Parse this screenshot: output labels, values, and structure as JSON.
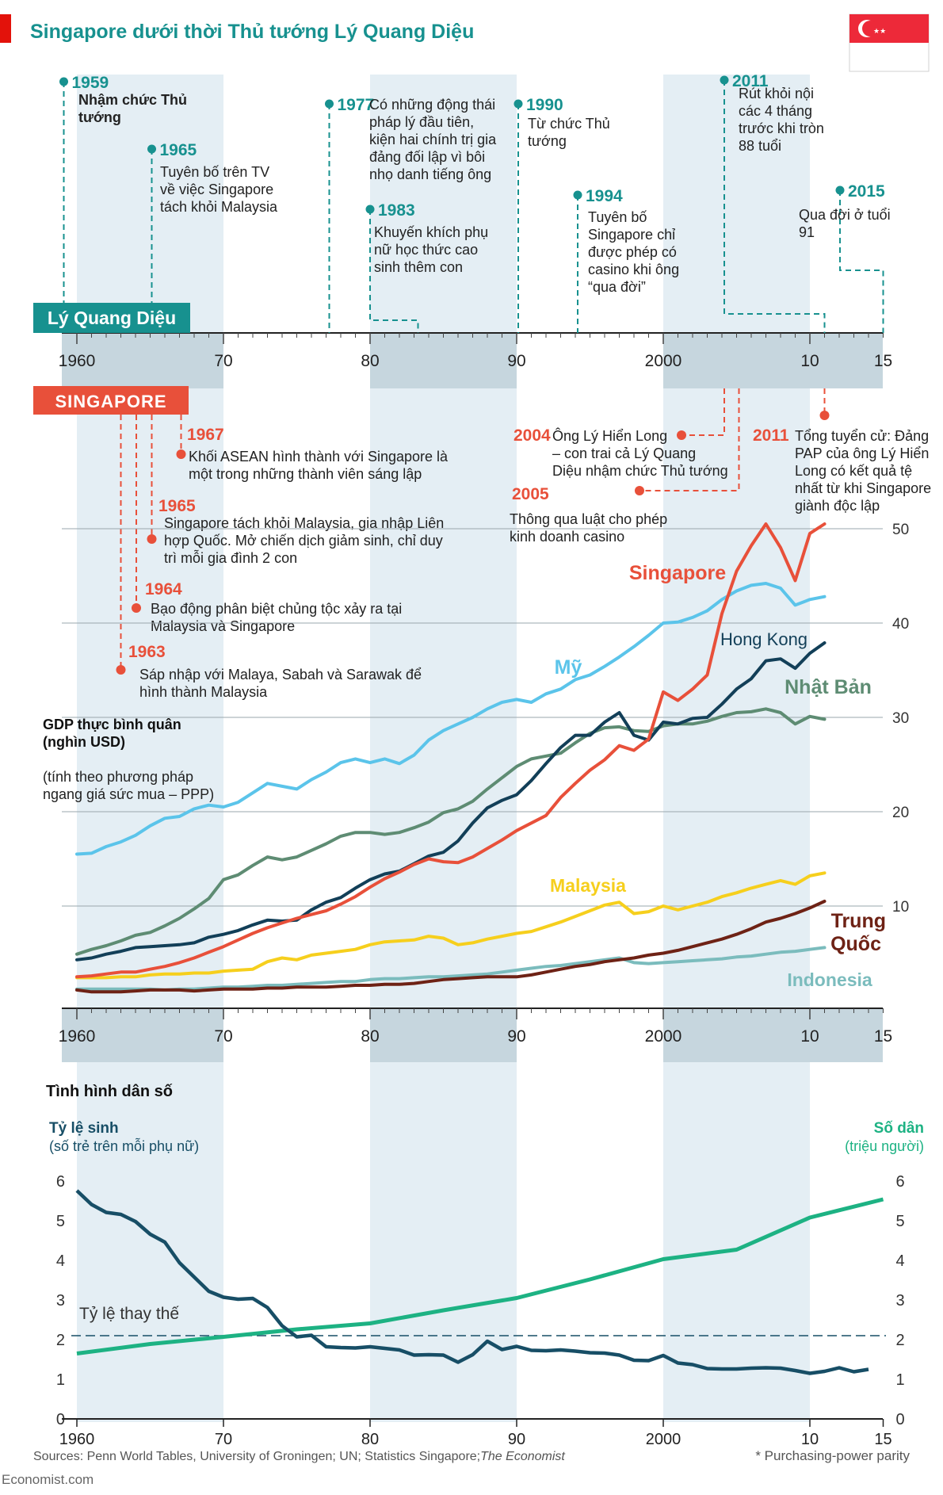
{
  "title": "Singapore dưới thời Thủ tướng Lý Quang Diệu",
  "colors": {
    "red": "#e8503a",
    "teal": "#17918f",
    "usa": "#5bc4ea",
    "hongkong": "#123f58",
    "japan": "#5e8c73",
    "malaysia": "#f6cf1d",
    "china": "#6e2215",
    "indonesia": "#7bbcbd",
    "birth": "#174e66",
    "pop": "#1db283",
    "band": "#e4eef4",
    "axisband": "#c6d6de"
  },
  "axis_years": {
    "labels": [
      "1960",
      "70",
      "80",
      "90",
      "2000",
      "10",
      "15"
    ],
    "values": [
      1960,
      1970,
      1980,
      1990,
      2000,
      2010,
      2015
    ]
  },
  "lky": {
    "badge": "Lý Quang Diệu",
    "events": [
      {
        "year": "1959",
        "lines": [
          "Nhậm chức Thủ",
          "tướng"
        ]
      },
      {
        "year": "1965",
        "lines": [
          "Tuyên bố trên TV",
          "về việc Singapore",
          "tách khỏi Malaysia"
        ]
      },
      {
        "year": "1977",
        "lines": [
          "Có những động thái",
          "pháp lý đầu tiên,",
          "kiện hai chính trị gia",
          "đảng đối lập vì bôi",
          "nhọ danh tiếng ông"
        ]
      },
      {
        "year": "1983",
        "lines": [
          "Khuyến khích phụ",
          "nữ học thức cao",
          "sinh thêm con"
        ]
      },
      {
        "year": "1990",
        "lines": [
          "Từ chức Thủ",
          "tướng"
        ]
      },
      {
        "year": "1994",
        "lines": [
          "Tuyên bố",
          "Singapore chỉ",
          "được phép có",
          "casino khi ông",
          "“qua đời”"
        ]
      },
      {
        "year": "2011",
        "lines": [
          "Rút khỏi nội",
          "các 4 tháng",
          "trước khi tròn",
          "88 tuổi"
        ]
      },
      {
        "year": "2015",
        "lines": [
          "Qua đời ở tuổi",
          "91"
        ]
      }
    ]
  },
  "singapore": {
    "badge": "SINGAPORE",
    "events": [
      {
        "year": "1967",
        "lines": [
          "Khối ASEAN hình thành với Singapore là",
          "một trong những thành viên sáng lập"
        ]
      },
      {
        "year": "1965",
        "lines": [
          "Singapore tách khỏi Malaysia, gia nhập Liên",
          "hợp Quốc. Mở chiến dịch giảm sinh, chỉ duy",
          "trì mỗi gia đình 2 con"
        ]
      },
      {
        "year": "1964",
        "lines": [
          "Bạo động phân biệt chủng tộc xảy ra tại",
          "Malaysia và Singapore"
        ]
      },
      {
        "year": "1963",
        "lines": [
          "Sáp nhập với Malaya, Sabah và Sarawak để",
          "hình thành Malaysia"
        ]
      },
      {
        "year": "2004",
        "lines": [
          "Ông Lý Hiển Long",
          "– con trai cả Lý Quang",
          "Diệu nhậm chức Thủ tướng"
        ]
      },
      {
        "year": "2005",
        "lines": [
          "Thông qua luật cho phép",
          "kinh doanh casino"
        ]
      },
      {
        "year": "2011",
        "lines": [
          "Tổng tuyển cử: Đảng",
          "PAP của ông Lý Hiển",
          "Long có kết quả tệ",
          "nhất từ khi Singapore",
          "giành độc lập"
        ]
      }
    ]
  },
  "gdp_title": [
    "GDP thực bình quân",
    "(nghìn USD)"
  ],
  "gdp_note": [
    "(tính theo phương pháp",
    "ngang giá sức mua – PPP)"
  ],
  "pop_title": "Tình hình dân số",
  "birth_axis": [
    "Tỷ lệ sinh",
    "(số trẻ trên mỗi phụ nữ)"
  ],
  "pop_axis": [
    "Số dân",
    "(triệu người)"
  ],
  "replacement_label": "Tỷ lệ thay thế",
  "sources": "Sources: Penn World Tables, University of Groningen; UN; Statistics Singapore;",
  "sources_italic": "The Economist",
  "footnote": "* Purchasing-power parity",
  "brand": "Economist.com",
  "chart_data": [
    {
      "type": "line",
      "title": "GDP thực bình quân (nghìn USD)",
      "xlabel": "",
      "ylabel": "GDP thực bình quân (nghìn USD)",
      "ylim": [
        0,
        55
      ],
      "y_ticks": [
        10,
        20,
        30,
        40,
        50
      ],
      "xlim": [
        1960,
        2015
      ],
      "x": [
        1960,
        1961,
        1962,
        1963,
        1964,
        1965,
        1966,
        1967,
        1968,
        1969,
        1970,
        1971,
        1972,
        1973,
        1974,
        1975,
        1976,
        1977,
        1978,
        1979,
        1980,
        1981,
        1982,
        1983,
        1984,
        1985,
        1986,
        1987,
        1988,
        1989,
        1990,
        1991,
        1992,
        1993,
        1994,
        1995,
        1996,
        1997,
        1998,
        1999,
        2000,
        2001,
        2002,
        2003,
        2004,
        2005,
        2006,
        2007,
        2008,
        2009,
        2010,
        2011
      ],
      "series": [
        {
          "name": "Mỹ",
          "values": [
            15.5,
            15.6,
            16.3,
            16.8,
            17.5,
            18.5,
            19.3,
            19.5,
            20.3,
            20.7,
            20.5,
            21.0,
            22.0,
            23.0,
            22.7,
            22.4,
            23.4,
            24.2,
            25.2,
            25.6,
            25.2,
            25.6,
            25.1,
            26.0,
            27.6,
            28.6,
            29.3,
            30.0,
            30.9,
            31.6,
            31.9,
            31.6,
            32.5,
            33.0,
            34.0,
            34.5,
            35.4,
            36.4,
            37.5,
            38.7,
            40.0,
            40.1,
            40.6,
            41.3,
            42.5,
            43.4,
            44.0,
            44.2,
            43.7,
            41.9,
            42.5,
            42.8
          ]
        },
        {
          "name": "Hong Kong",
          "values": [
            4.3,
            4.5,
            4.9,
            5.2,
            5.6,
            5.7,
            5.8,
            5.9,
            6.1,
            6.7,
            7.0,
            7.4,
            8.0,
            8.5,
            8.4,
            8.5,
            9.6,
            10.4,
            10.9,
            11.9,
            12.8,
            13.4,
            13.7,
            14.5,
            15.3,
            15.7,
            16.9,
            18.8,
            20.4,
            21.2,
            21.8,
            23.3,
            25.1,
            26.8,
            28.1,
            28.1,
            29.5,
            30.5,
            28.1,
            27.6,
            29.5,
            29.3,
            29.9,
            30.0,
            31.4,
            33.0,
            34.1,
            36.0,
            36.2,
            35.2,
            36.8,
            37.9
          ]
        },
        {
          "name": "Nhật Bản",
          "values": [
            4.9,
            5.4,
            5.8,
            6.3,
            6.9,
            7.2,
            7.9,
            8.7,
            9.7,
            10.8,
            12.8,
            13.3,
            14.3,
            15.2,
            14.9,
            15.2,
            15.9,
            16.6,
            17.4,
            17.8,
            17.8,
            17.6,
            17.8,
            18.3,
            18.9,
            19.9,
            20.3,
            21.1,
            22.4,
            23.6,
            24.8,
            25.6,
            25.9,
            26.2,
            27.3,
            28.3,
            28.9,
            29.0,
            28.6,
            28.5,
            29.1,
            29.3,
            29.3,
            29.6,
            30.1,
            30.5,
            30.6,
            30.9,
            30.5,
            29.3,
            30.1,
            29.8
          ]
        },
        {
          "name": "Singapore",
          "values": [
            2.5,
            2.6,
            2.8,
            3.0,
            3.0,
            3.3,
            3.6,
            4.0,
            4.5,
            5.1,
            5.7,
            6.4,
            7.1,
            7.7,
            8.2,
            8.7,
            9.1,
            9.5,
            10.2,
            11.0,
            12.0,
            12.9,
            13.6,
            14.4,
            15.0,
            14.7,
            14.6,
            15.2,
            16.1,
            17.0,
            18.0,
            18.8,
            19.6,
            21.5,
            23.0,
            24.4,
            25.5,
            27.0,
            26.5,
            27.7,
            32.7,
            31.8,
            33.0,
            34.5,
            41.0,
            45.5,
            48.2,
            50.5,
            48.0,
            44.5,
            49.5,
            50.5
          ]
        },
        {
          "name": "Malaysia",
          "values": [
            2.4,
            2.4,
            2.4,
            2.5,
            2.5,
            2.7,
            2.8,
            2.8,
            2.9,
            2.9,
            3.1,
            3.2,
            3.3,
            4.1,
            4.5,
            4.3,
            4.8,
            5.0,
            5.2,
            5.4,
            5.9,
            6.2,
            6.3,
            6.4,
            6.8,
            6.6,
            5.9,
            6.1,
            6.5,
            6.8,
            7.1,
            7.3,
            7.8,
            8.3,
            8.9,
            9.5,
            10.1,
            10.4,
            9.2,
            9.4,
            10.0,
            9.6,
            10.0,
            10.4,
            11.0,
            11.4,
            11.9,
            12.3,
            12.7,
            12.3,
            13.2,
            13.5
          ]
        },
        {
          "name": "Trung Quốc",
          "values": [
            1.1,
            0.9,
            0.9,
            0.9,
            1.0,
            1.1,
            1.1,
            1.1,
            1.0,
            1.1,
            1.2,
            1.2,
            1.2,
            1.3,
            1.3,
            1.4,
            1.4,
            1.4,
            1.5,
            1.6,
            1.6,
            1.7,
            1.7,
            1.8,
            2.0,
            2.2,
            2.3,
            2.4,
            2.5,
            2.5,
            2.5,
            2.7,
            3.0,
            3.3,
            3.6,
            3.8,
            4.1,
            4.3,
            4.5,
            4.8,
            5.0,
            5.3,
            5.7,
            6.1,
            6.5,
            7.0,
            7.6,
            8.3,
            8.7,
            9.2,
            9.8,
            10.5
          ]
        },
        {
          "name": "Indonesia",
          "values": [
            1.2,
            1.2,
            1.2,
            1.2,
            1.2,
            1.2,
            1.1,
            1.2,
            1.2,
            1.3,
            1.4,
            1.4,
            1.5,
            1.6,
            1.6,
            1.7,
            1.8,
            1.9,
            2.0,
            2.0,
            2.2,
            2.3,
            2.3,
            2.4,
            2.5,
            2.5,
            2.6,
            2.7,
            2.8,
            3.0,
            3.2,
            3.4,
            3.6,
            3.7,
            3.9,
            4.1,
            4.3,
            4.5,
            4.0,
            3.9,
            4.0,
            4.1,
            4.2,
            4.3,
            4.4,
            4.6,
            4.7,
            4.9,
            5.1,
            5.2,
            5.4,
            5.6
          ]
        }
      ]
    },
    {
      "type": "line",
      "title": "Tình hình dân số",
      "ylabel": "Tỷ lệ sinh (số trẻ trên mỗi phụ nữ)",
      "y2label": "Số dân (triệu người)",
      "ylim": [
        0,
        6
      ],
      "y_ticks": [
        0,
        1,
        2,
        3,
        4,
        5,
        6
      ],
      "xlim": [
        1960,
        2015
      ],
      "replacement_rate": 2.1,
      "series": [
        {
          "name": "Tỷ lệ sinh",
          "x": [
            1960,
            1961,
            1962,
            1963,
            1964,
            1965,
            1966,
            1967,
            1968,
            1969,
            1970,
            1971,
            1972,
            1973,
            1974,
            1975,
            1976,
            1977,
            1978,
            1979,
            1980,
            1981,
            1982,
            1983,
            1984,
            1985,
            1986,
            1987,
            1988,
            1989,
            1990,
            1991,
            1992,
            1993,
            1994,
            1995,
            1996,
            1997,
            1998,
            1999,
            2000,
            2001,
            2002,
            2003,
            2004,
            2005,
            2006,
            2007,
            2008,
            2009,
            2010,
            2011,
            2012,
            2013,
            2014
          ],
          "values": [
            5.76,
            5.41,
            5.21,
            5.16,
            4.98,
            4.66,
            4.46,
            3.94,
            3.58,
            3.22,
            3.07,
            3.02,
            3.04,
            2.81,
            2.35,
            2.07,
            2.11,
            1.82,
            1.8,
            1.79,
            1.82,
            1.78,
            1.74,
            1.61,
            1.62,
            1.61,
            1.43,
            1.62,
            1.96,
            1.75,
            1.83,
            1.73,
            1.72,
            1.74,
            1.71,
            1.67,
            1.66,
            1.61,
            1.48,
            1.47,
            1.6,
            1.41,
            1.37,
            1.27,
            1.26,
            1.26,
            1.28,
            1.29,
            1.28,
            1.22,
            1.15,
            1.2,
            1.29,
            1.19,
            1.25
          ]
        },
        {
          "name": "Số dân",
          "x": [
            1960,
            1965,
            1970,
            1975,
            1980,
            1985,
            1990,
            1995,
            2000,
            2005,
            2010,
            2015
          ],
          "values": [
            1.65,
            1.89,
            2.07,
            2.26,
            2.41,
            2.74,
            3.05,
            3.52,
            4.03,
            4.27,
            5.08,
            5.54
          ]
        }
      ]
    }
  ]
}
